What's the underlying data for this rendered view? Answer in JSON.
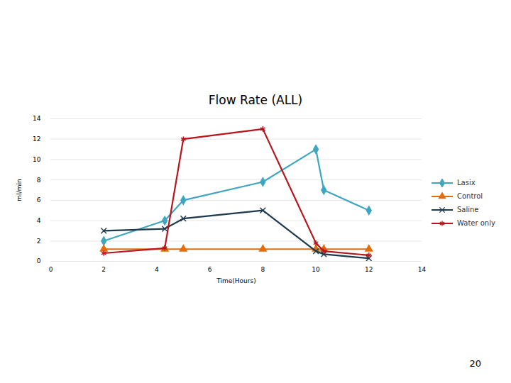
{
  "chart_data": {
    "type": "line",
    "title": "Flow Rate (ALL)",
    "x_label": "Time(Hours)",
    "y_label": "ml/min",
    "x": [
      2,
      4.3,
      5,
      8,
      10,
      10.3,
      12
    ],
    "series": [
      {
        "name": "Lasix",
        "color": "#3ea6c0",
        "marker": "diamond",
        "line_style": "solid",
        "values": [
          2,
          4,
          6,
          7.8,
          11,
          7,
          5
        ]
      },
      {
        "name": "Control",
        "color": "#e46c0a",
        "marker": "triangle",
        "line_style": "solid",
        "values": [
          1.2,
          1.2,
          1.2,
          1.2,
          1.2,
          1.2,
          1.2
        ]
      },
      {
        "name": "Saline",
        "color": "#1e3a4c",
        "marker": "times",
        "line_style": "solid",
        "values": [
          3,
          3.2,
          4.2,
          5,
          1,
          0.7,
          0.3
        ]
      },
      {
        "name": "Water only",
        "color": "#b8141c",
        "marker": "asterisk",
        "line_style": "solid",
        "values": [
          0.8,
          1.3,
          12,
          13,
          1.8,
          1,
          0.6
        ]
      }
    ],
    "xlim": [
      0,
      14
    ],
    "xticks": [
      0,
      2,
      4,
      6,
      8,
      10,
      12,
      14
    ],
    "ylim": [
      0,
      14
    ],
    "yticks": [
      0,
      2,
      4,
      6,
      8,
      10,
      12,
      14
    ],
    "grid": true,
    "legend": "right"
  },
  "page_number": 20
}
